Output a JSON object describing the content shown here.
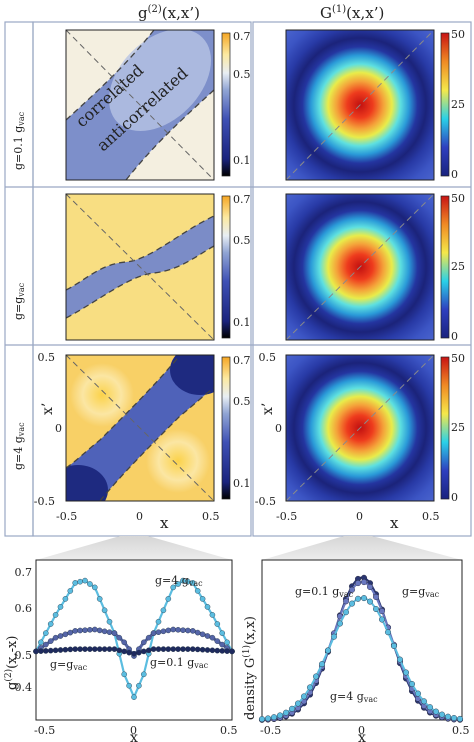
{
  "columns": {
    "left_title": "g",
    "left_title_sup": "(2)",
    "left_title_args": "(x,x’)",
    "right_title": "G",
    "right_title_sup": "(1)",
    "right_title_args": "(x,x’)"
  },
  "rows": [
    {
      "label_main": "g=0.1 g",
      "label_sub": "vac"
    },
    {
      "label_main": "g=g",
      "label_sub": "vac"
    },
    {
      "label_main": "g=4 g",
      "label_sub": "vac"
    }
  ],
  "annotations": {
    "correlated": "correlated",
    "anticorrelated": "anticorrelated"
  },
  "colorbars": {
    "g2_ticks": [
      "0.7",
      "0.5",
      "0.1"
    ],
    "g1_ticks": [
      "50",
      "25",
      "0"
    ]
  },
  "axes": {
    "x_label": "x",
    "y_label": "x’",
    "x_ticks": [
      "-0.5",
      "0",
      "0.5"
    ],
    "y_ticks": [
      "0.5",
      "0",
      "-0.5"
    ]
  },
  "bottom_left": {
    "y_label_main": "g",
    "y_label_sup": "(2)",
    "y_label_args": "(x,-x)",
    "x_label": "x",
    "y_ticks": [
      "0.7",
      "0.6",
      "0.5",
      "0.4"
    ],
    "x_ticks": [
      "-0.5",
      "0",
      "0.5"
    ],
    "labels": [
      {
        "main": "g=4 g",
        "sub": "vac"
      },
      {
        "main": "g=g",
        "sub": "vac"
      },
      {
        "main": "g=0.1 g",
        "sub": "vac"
      }
    ]
  },
  "bottom_right": {
    "y_label_main": "density  G",
    "y_label_sup": "(1)",
    "y_label_args": "(x,x)",
    "x_label": "x",
    "x_ticks": [
      "-0.5",
      "0",
      "0.5"
    ],
    "labels": [
      {
        "main": "g=0.1 g",
        "sub": "vac"
      },
      {
        "main": "g=g",
        "sub": "vac"
      },
      {
        "main": "g=4 g",
        "sub": "vac"
      }
    ]
  },
  "chart_data": [
    {
      "type": "line",
      "ylabel": "g(2)(x,-x)",
      "xlabel": "x",
      "xlim": [
        -0.5,
        0.5
      ],
      "ylim": [
        0.35,
        0.7
      ],
      "series": [
        {
          "name": "g=4 gvac",
          "x": [
            -0.5,
            -0.4,
            -0.3,
            -0.25,
            -0.2,
            -0.1,
            -0.05,
            0,
            0.05,
            0.1,
            0.2,
            0.25,
            0.3,
            0.4,
            0.5
          ],
          "values": [
            0.5,
            0.58,
            0.65,
            0.655,
            0.64,
            0.54,
            0.45,
            0.4,
            0.45,
            0.54,
            0.64,
            0.655,
            0.65,
            0.58,
            0.5
          ]
        },
        {
          "name": "g=gvac",
          "x": [
            -0.5,
            -0.4,
            -0.3,
            -0.2,
            -0.1,
            -0.05,
            0,
            0.05,
            0.1,
            0.2,
            0.3,
            0.4,
            0.5
          ],
          "values": [
            0.5,
            0.53,
            0.545,
            0.548,
            0.54,
            0.52,
            0.49,
            0.52,
            0.54,
            0.548,
            0.545,
            0.53,
            0.5
          ]
        },
        {
          "name": "g=0.1 gvac",
          "x": [
            -0.5,
            -0.3,
            -0.1,
            -0.05,
            0,
            0.05,
            0.1,
            0.3,
            0.5
          ],
          "values": [
            0.5,
            0.505,
            0.505,
            0.5,
            0.495,
            0.5,
            0.505,
            0.505,
            0.5
          ]
        }
      ]
    },
    {
      "type": "line",
      "ylabel": "density G(1)(x,x)",
      "xlabel": "x",
      "xlim": [
        -0.5,
        0.5
      ],
      "ylim": [
        0,
        55
      ],
      "series": [
        {
          "name": "g=0.1 gvac",
          "peak": 49,
          "width": 0.14
        },
        {
          "name": "g=gvac",
          "peak": 47.5,
          "width": 0.145
        },
        {
          "name": "g=4 gvac",
          "peak": 42,
          "width": 0.16
        }
      ]
    }
  ]
}
